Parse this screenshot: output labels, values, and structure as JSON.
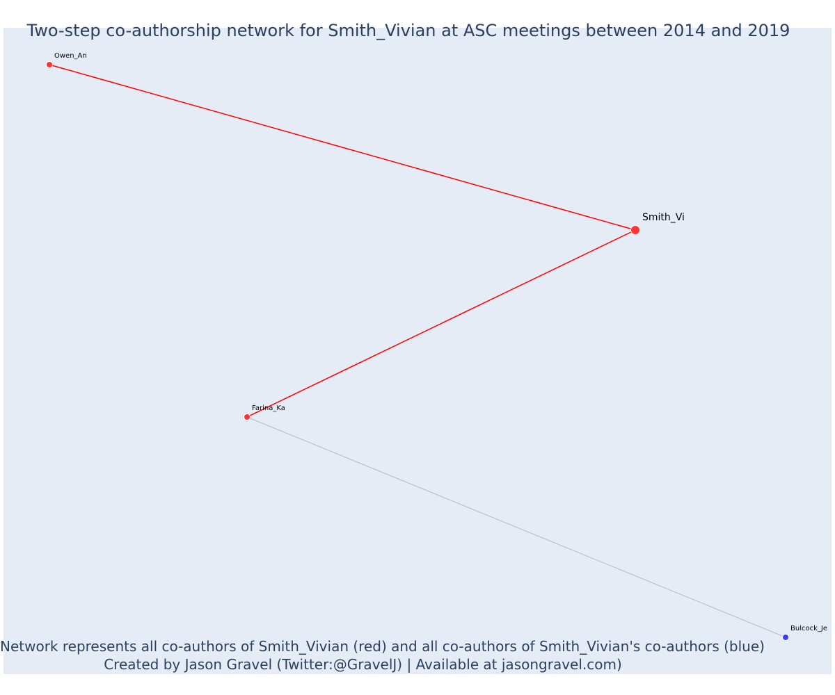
{
  "title": "Two-step co-authorship network for Smith_Vivian at ASC meetings between 2014 and 2019",
  "footnote_line1": "Network represents all co-authors of Smith_Vivian (red) and all co-authors of Smith_Vivian's co-authors (blue)",
  "footnote_line2": "Created by Jason Gravel (Twitter:@GravelJ) | Available at jasongravel.com)",
  "colors": {
    "plot_background": "#e5ecf6",
    "first_degree": "#ff3333",
    "second_degree": "#3d3df0",
    "first_degree_edge": "#ff0000",
    "second_degree_edge": "#b8b8c8",
    "text": "#2a3f5f"
  },
  "network": {
    "nodes": [
      {
        "id": "Smith_Vi",
        "label": "Smith_Vi",
        "group": "focal"
      },
      {
        "id": "Owen_An",
        "label": "Owen_An",
        "group": "co-author"
      },
      {
        "id": "Farina_Ka",
        "label": "Farina_Ka",
        "group": "co-author"
      },
      {
        "id": "Bulcock_Je",
        "label": "Bulcock_Je",
        "group": "co-author-of-co-author"
      }
    ],
    "edges": [
      {
        "source": "Smith_Vi",
        "target": "Owen_An",
        "group": "co-author"
      },
      {
        "source": "Smith_Vi",
        "target": "Farina_Ka",
        "group": "co-author"
      },
      {
        "source": "Farina_Ka",
        "target": "Bulcock_Je",
        "group": "co-author-of-co-author"
      }
    ]
  }
}
